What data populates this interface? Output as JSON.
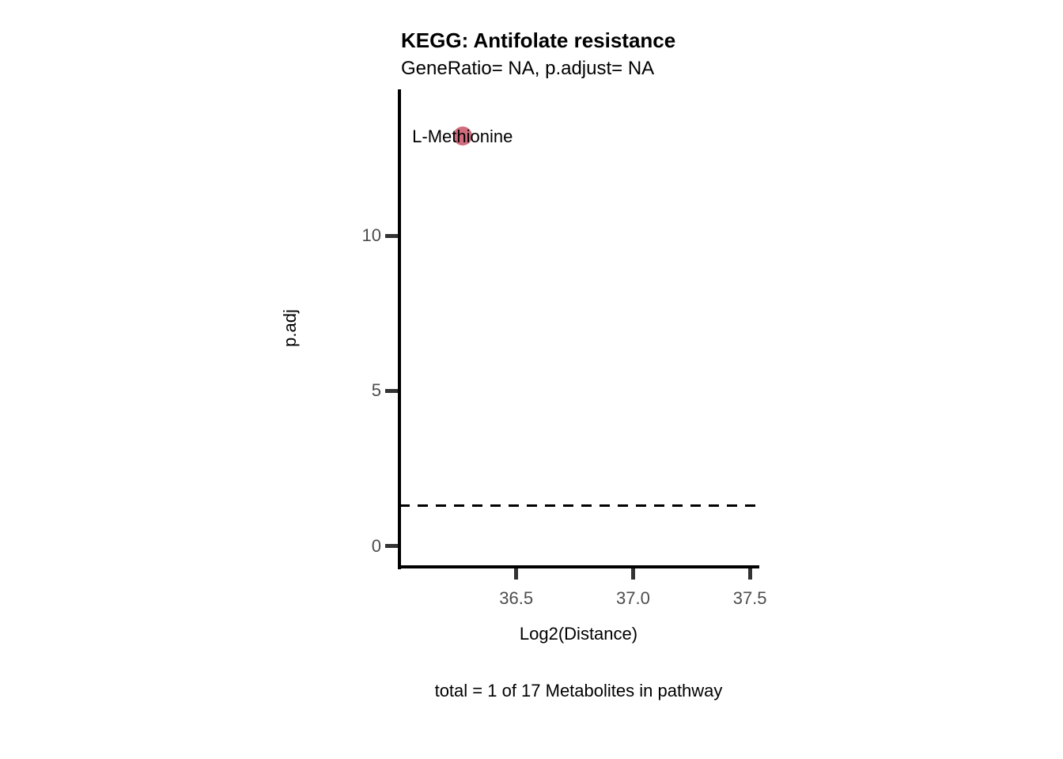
{
  "chart_data": {
    "type": "scatter",
    "title": "KEGG: Antifolate resistance",
    "subtitle": "GeneRatio= NA, p.adjust= NA",
    "xlabel": "Log2(Distance)",
    "ylabel": "p.adj",
    "caption": "total = 1 of 17 Metabolites in pathway",
    "points": [
      {
        "label": "L-Methionine",
        "x": 36.27,
        "y": 13.2
      }
    ],
    "threshold_line": {
      "y": 1.3,
      "orientation": "horizontal",
      "style": "dashed"
    },
    "xlim": [
      36.0,
      37.53
    ],
    "ylim": [
      -0.69,
      14.71
    ],
    "xticks": {
      "values": [
        36.5,
        37.0,
        37.5
      ],
      "labels": [
        "36.5",
        "37.0",
        "37.5"
      ]
    },
    "yticks": {
      "values": [
        0,
        5,
        10
      ],
      "labels": [
        "0",
        "5",
        "10"
      ]
    },
    "grid": false,
    "legend": "none",
    "colors": {
      "background": "#FFFFFF",
      "point_fill": "#D06C7D",
      "axis_line": "#000000",
      "tick_mark": "#333333",
      "tick_text": "#4D4D4D",
      "text": "#000000",
      "threshold_line": "#000000"
    }
  }
}
